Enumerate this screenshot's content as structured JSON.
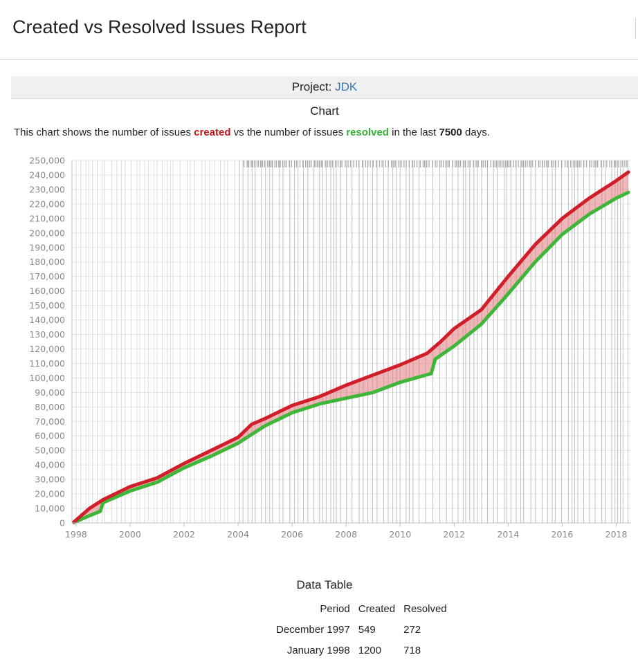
{
  "page": {
    "title": "Created vs Resolved Issues Report"
  },
  "project": {
    "label": "Project:",
    "name": "JDK"
  },
  "chart_section": {
    "heading": "Chart",
    "desc_prefix": "This chart shows the number of issues ",
    "desc_created": "created",
    "desc_middle": " vs the number of issues ",
    "desc_resolved": "resolved",
    "desc_in_last": " in the last ",
    "desc_days_value": "7500",
    "desc_suffix": " days."
  },
  "colors": {
    "created": "#d01f2a",
    "resolved": "#3fb63a",
    "fill": "#e27b7b",
    "link": "#3b73af"
  },
  "chart_data": {
    "type": "area",
    "title": "",
    "xlabel": "",
    "ylabel": "",
    "xlim": [
      1997.85,
      2018.55
    ],
    "ylim": [
      0,
      250000
    ],
    "yticks": [
      "0",
      "10,000",
      "20,000",
      "30,000",
      "40,000",
      "50,000",
      "60,000",
      "70,000",
      "80,000",
      "90,000",
      "100,000",
      "110,000",
      "120,000",
      "130,000",
      "140,000",
      "150,000",
      "160,000",
      "170,000",
      "180,000",
      "190,000",
      "200,000",
      "210,000",
      "220,000",
      "230,000",
      "240,000",
      "250,000"
    ],
    "xticks": [
      "1998",
      "2000",
      "2002",
      "2004",
      "2006",
      "2008",
      "2010",
      "2012",
      "2014",
      "2016",
      "2018"
    ],
    "legend": "none",
    "series": [
      {
        "name": "created",
        "x": [
          1997.92,
          1998.5,
          1999,
          2000,
          2001,
          2002,
          2003,
          2004,
          2004.5,
          2005,
          2006,
          2007,
          2008,
          2009,
          2010,
          2011,
          2011.5,
          2012,
          2013,
          2014,
          2015,
          2016,
          2017,
          2018,
          2018.45
        ],
        "y": [
          549,
          10000,
          16000,
          25000,
          31000,
          41000,
          50000,
          59000,
          68000,
          72000,
          81000,
          87000,
          95000,
          102000,
          109000,
          117000,
          125000,
          134000,
          147000,
          170000,
          192000,
          210000,
          224000,
          236000,
          242000
        ]
      },
      {
        "name": "resolved",
        "x": [
          1997.92,
          1998.5,
          1998.9,
          1999,
          2000,
          2001,
          2002,
          2003,
          2004,
          2005,
          2006,
          2007,
          2008,
          2009,
          2010,
          2011.15,
          2011.3,
          2012,
          2013,
          2014,
          2015,
          2016,
          2017,
          2018,
          2018.45
        ],
        "y": [
          272,
          5000,
          8000,
          14000,
          22000,
          28000,
          38000,
          46000,
          55000,
          67000,
          76000,
          82000,
          86000,
          90000,
          97000,
          103000,
          113000,
          122000,
          137000,
          158000,
          180000,
          199000,
          213000,
          224000,
          228000
        ]
      }
    ]
  },
  "data_table": {
    "heading": "Data Table",
    "headers": [
      "Period",
      "Created",
      "Resolved"
    ],
    "rows": [
      [
        "December 1997",
        "549",
        "272"
      ],
      [
        "January 1998",
        "1200",
        "718"
      ]
    ]
  }
}
